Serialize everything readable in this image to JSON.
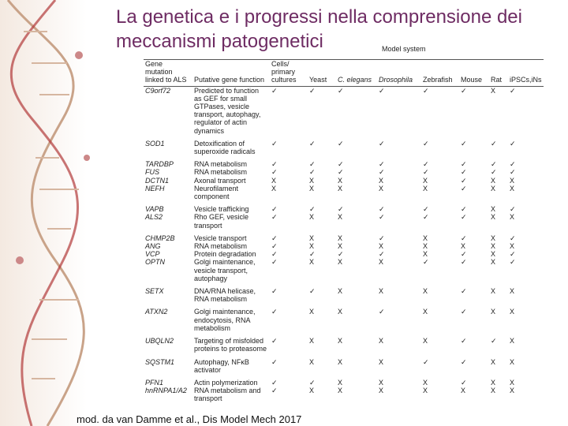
{
  "title": "La genetica e i progressi nella comprensione dei meccanismi patogenetici",
  "model_system_label": "Model system",
  "table": {
    "header": [
      "Gene mutation linked to ALS",
      "Putative gene function",
      "Cells/ primary cultures",
      "Yeast",
      "C. elegans",
      "Drosophila",
      "Zebrafish",
      "Mouse",
      "Rat",
      "iPSCs,iNs"
    ],
    "rows": [
      [
        "C9orf72",
        "Predicted to function as GEF for small GTPases, vesicle transport, autophagy, regulator of actin dynamics",
        "✓",
        "✓",
        "✓",
        "✓",
        "✓",
        "✓",
        "X",
        "✓"
      ],
      [
        "SOD1",
        "Detoxification of superoxide radicals",
        "✓",
        "✓",
        "✓",
        "✓",
        "✓",
        "✓",
        "✓",
        "✓"
      ],
      [
        "TARDBP",
        "RNA metabolism",
        "✓",
        "✓",
        "✓",
        "✓",
        "✓",
        "✓",
        "✓",
        "✓"
      ],
      [
        "FUS",
        "RNA metabolism",
        "✓",
        "✓",
        "✓",
        "✓",
        "✓",
        "✓",
        "✓",
        "✓"
      ],
      [
        "DCTN1",
        "Axonal transport",
        "X",
        "X",
        "X",
        "X",
        "X",
        "✓",
        "X",
        "X"
      ],
      [
        "NEFH",
        "Neurofilament component",
        "X",
        "X",
        "X",
        "X",
        "X",
        "✓",
        "X",
        "X"
      ],
      [
        "VAPB",
        "Vesicle trafficking",
        "✓",
        "✓",
        "✓",
        "✓",
        "✓",
        "✓",
        "X",
        "✓"
      ],
      [
        "ALS2",
        "Rho GEF, vesicle transport",
        "✓",
        "X",
        "X",
        "✓",
        "✓",
        "✓",
        "X",
        "X"
      ],
      [
        "CHMP2B",
        "Vesicle transport",
        "✓",
        "X",
        "X",
        "✓",
        "X",
        "✓",
        "X",
        "✓"
      ],
      [
        "ANG",
        "RNA metabolism",
        "✓",
        "X",
        "X",
        "X",
        "X",
        "X",
        "X",
        "X"
      ],
      [
        "VCP",
        "Protein degradation",
        "✓",
        "✓",
        "✓",
        "✓",
        "X",
        "✓",
        "X",
        "✓"
      ],
      [
        "OPTN",
        "Golgi maintenance, vesicle transport, autophagy",
        "✓",
        "X",
        "X",
        "X",
        "✓",
        "✓",
        "X",
        "✓"
      ],
      [
        "SETX",
        "DNA/RNA helicase, RNA metabolism",
        "✓",
        "✓",
        "X",
        "X",
        "X",
        "✓",
        "X",
        "X"
      ],
      [
        "ATXN2",
        "Golgi maintenance, endocytosis, RNA metabolism",
        "✓",
        "X",
        "X",
        "✓",
        "X",
        "✓",
        "X",
        "X"
      ],
      [
        "UBQLN2",
        "Targeting of misfolded proteins to proteasome",
        "✓",
        "X",
        "X",
        "X",
        "X",
        "✓",
        "✓",
        "X"
      ],
      [
        "SQSTM1",
        "Autophagy, NFκB activator",
        "✓",
        "X",
        "X",
        "X",
        "✓",
        "✓",
        "X",
        "X"
      ],
      [
        "PFN1",
        "Actin polymerization",
        "✓",
        "✓",
        "X",
        "X",
        "X",
        "✓",
        "X",
        "X"
      ],
      [
        "hnRNPA1/A2",
        "RNA metabolism and transport",
        "✓",
        "X",
        "X",
        "X",
        "X",
        "X",
        "X",
        "X"
      ]
    ]
  },
  "footer": "mod. da van Damme et al., Dis Model Mech 2017"
}
